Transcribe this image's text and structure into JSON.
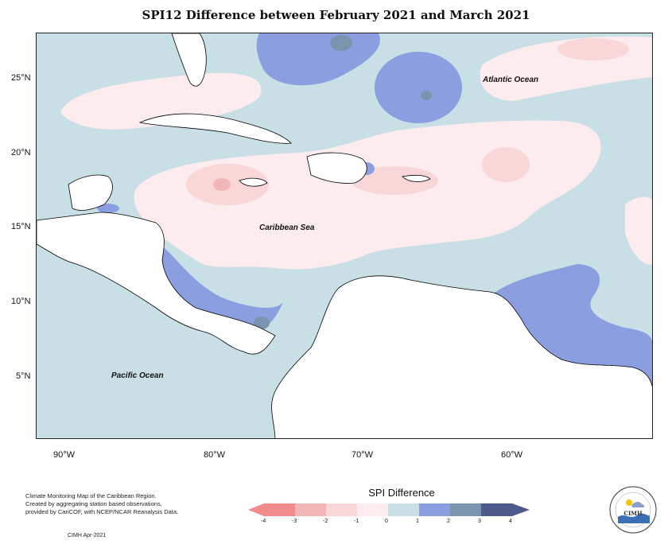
{
  "title": "SPI12 Difference between February 2021 and March 2021",
  "map": {
    "ocean_labels": [
      {
        "text": "Atlantic Ocean"
      },
      {
        "text": "Caribbean Sea"
      },
      {
        "text": "Pacific Ocean"
      }
    ],
    "lat_labels": [
      "25°N",
      "20°N",
      "15°N",
      "10°N",
      "5°N"
    ],
    "lon_labels": [
      "90°W",
      "80°W",
      "70°W",
      "60°W"
    ]
  },
  "legend": {
    "title": "SPI Difference",
    "tick_labels": [
      "-4",
      "-3",
      "-2",
      "-1",
      "0",
      "1",
      "2",
      "3",
      "4"
    ],
    "colors": [
      "#f28c8c",
      "#f2b6b6",
      "#f9d6d8",
      "#fdecee",
      "#c9dfe6",
      "#8a9ee0",
      "#7a94ad",
      "#4f5a8c"
    ]
  },
  "credits": {
    "lines": [
      "Climate Monitoring Map of the Caribbean Region.",
      "Created by aggregating station based observations,",
      "provided by CariCOF, with NCEP/NCAR Reanalysis Data."
    ],
    "date": "CIMH Apr-2021"
  },
  "logo": {
    "text": "CIMH"
  }
}
